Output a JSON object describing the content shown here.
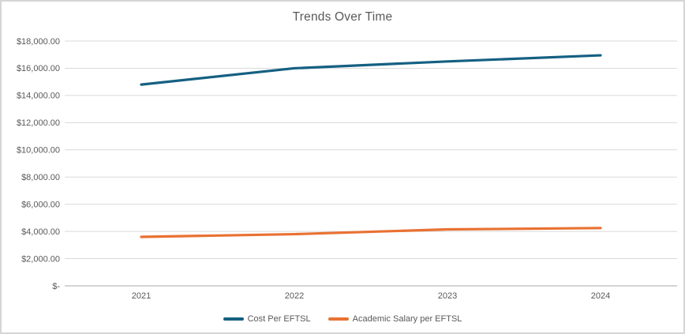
{
  "window": {
    "background": "#ffffff",
    "border_color": "#d5d5d5"
  },
  "chart_data": {
    "type": "line",
    "title": "Trends Over Time",
    "categories": [
      "2021",
      "2022",
      "2023",
      "2024"
    ],
    "series": [
      {
        "name": "Cost Per EFTSL",
        "color": "#156082",
        "values": [
          14800,
          16000,
          16500,
          16950
        ]
      },
      {
        "name": "Academic Salary per EFTSL",
        "color": "#E97132",
        "values": [
          3600,
          3800,
          4150,
          4250
        ]
      }
    ],
    "xlabel": "",
    "ylabel": "",
    "y_axis": {
      "min": 0,
      "max": 18000,
      "step": 2000,
      "tick_labels": [
        "$-",
        "$2,000.00",
        "$4,000.00",
        "$6,000.00",
        "$8,000.00",
        "$10,000.00",
        "$12,000.00",
        "$14,000.00",
        "$16,000.00",
        "$18,000.00"
      ]
    },
    "grid": true,
    "legend_position": "bottom",
    "colors": {
      "gridline": "#D9D9D9",
      "axis_line": "#C6C6C6",
      "axis_text": "#595959",
      "title_text": "#595959"
    }
  }
}
